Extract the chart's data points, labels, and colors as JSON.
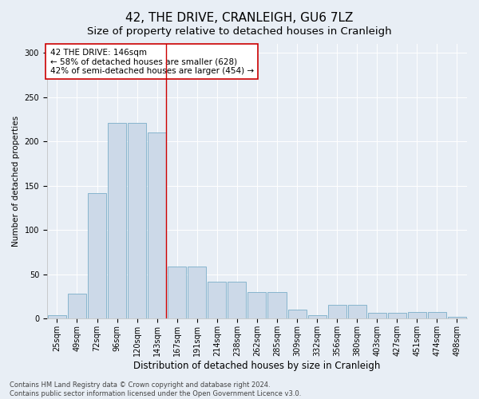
{
  "title": "42, THE DRIVE, CRANLEIGH, GU6 7LZ",
  "subtitle": "Size of property relative to detached houses in Cranleigh",
  "xlabel": "Distribution of detached houses by size in Cranleigh",
  "ylabel": "Number of detached properties",
  "categories": [
    "25sqm",
    "49sqm",
    "72sqm",
    "96sqm",
    "120sqm",
    "143sqm",
    "167sqm",
    "191sqm",
    "214sqm",
    "238sqm",
    "262sqm",
    "285sqm",
    "309sqm",
    "332sqm",
    "356sqm",
    "380sqm",
    "403sqm",
    "427sqm",
    "451sqm",
    "474sqm",
    "498sqm"
  ],
  "values": [
    4,
    28,
    142,
    221,
    221,
    210,
    59,
    59,
    42,
    42,
    30,
    30,
    10,
    4,
    16,
    16,
    7,
    7,
    8,
    8,
    2
  ],
  "bar_color": "#ccd9e8",
  "bar_edge_color": "#7aaec8",
  "background_color": "#e8eef5",
  "vline_color": "#cc0000",
  "vline_index": 5,
  "annotation_text": "42 THE DRIVE: 146sqm\n← 58% of detached houses are smaller (628)\n42% of semi-detached houses are larger (454) →",
  "annotation_box_facecolor": "#ffffff",
  "annotation_box_edgecolor": "#cc0000",
  "ylim": [
    0,
    310
  ],
  "yticks": [
    0,
    50,
    100,
    150,
    200,
    250,
    300
  ],
  "title_fontsize": 11,
  "subtitle_fontsize": 9.5,
  "xlabel_fontsize": 8.5,
  "ylabel_fontsize": 7.5,
  "tick_fontsize": 7,
  "annotation_fontsize": 7.5,
  "footer_fontsize": 6,
  "footer_text": "Contains HM Land Registry data © Crown copyright and database right 2024.\nContains public sector information licensed under the Open Government Licence v3.0."
}
